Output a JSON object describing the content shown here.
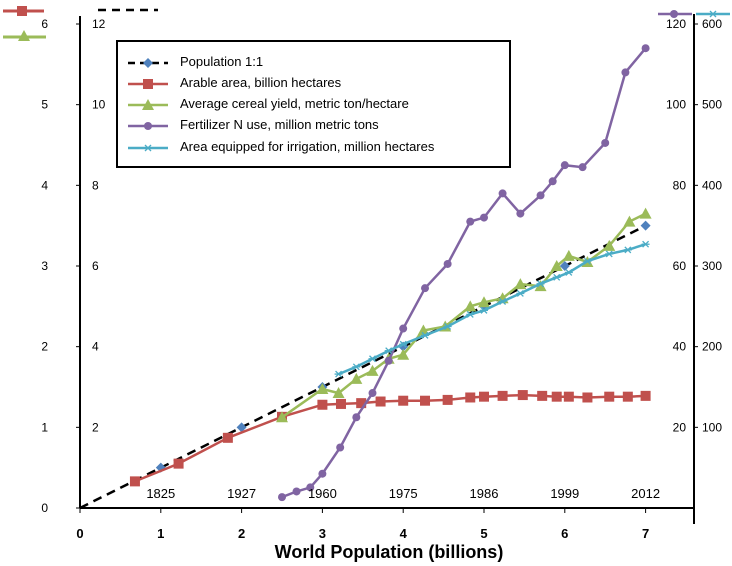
{
  "chart_data": {
    "type": "line",
    "xlabel": "World Population (billions)",
    "xlim": [
      0,
      7
    ],
    "x_ticks": [
      "0",
      "1",
      "2",
      "3",
      "4",
      "5",
      "6",
      "7"
    ],
    "year_labels": [
      {
        "x": 1.0,
        "label": "1825"
      },
      {
        "x": 2.0,
        "label": "1927"
      },
      {
        "x": 3.0,
        "label": "1960"
      },
      {
        "x": 4.0,
        "label": "1975"
      },
      {
        "x": 5.0,
        "label": "1986"
      },
      {
        "x": 6.0,
        "label": "1999"
      },
      {
        "x": 7.0,
        "label": "2012"
      }
    ],
    "axes": {
      "arable": {
        "ylim": [
          0,
          6
        ],
        "ticks": [
          "0",
          "1",
          "2",
          "3",
          "4",
          "5",
          "6"
        ],
        "color": "#c0504d"
      },
      "yield": {
        "ylim": [
          0,
          12
        ],
        "ticks": [
          "2",
          "4",
          "6",
          "8",
          "10",
          "12"
        ],
        "color": "#9bbb59"
      },
      "fertilizer": {
        "ylim": [
          0,
          120
        ],
        "ticks": [
          "20",
          "40",
          "60",
          "80",
          "100",
          "120"
        ],
        "color": "#8064a2"
      },
      "irrigation": {
        "ylim": [
          0,
          600
        ],
        "ticks": [
          "100",
          "200",
          "300",
          "400",
          "500",
          "600"
        ],
        "color": "#4bacc6"
      }
    },
    "series": [
      {
        "key": "population",
        "name": "Population 1:1",
        "axis": "arable",
        "color": "#000000",
        "marker_color": "#4f81bd",
        "marker": "diamond",
        "dashed": true,
        "x": [
          0,
          1,
          2,
          3,
          4,
          5,
          6,
          7
        ],
        "y": [
          0,
          0.5,
          1,
          1.5,
          2,
          2.5,
          3,
          3.5
        ]
      },
      {
        "key": "arable",
        "name": "Arable area, billion hectares",
        "axis": "arable",
        "color": "#c0504d",
        "marker": "square",
        "x": [
          0.68,
          1.22,
          1.83,
          2.5,
          3.0,
          3.23,
          3.48,
          3.72,
          4.0,
          4.27,
          4.55,
          4.83,
          5.0,
          5.23,
          5.48,
          5.72,
          5.9,
          6.05,
          6.28,
          6.55,
          6.78,
          7.0
        ],
        "y": [
          0.33,
          0.55,
          0.87,
          1.13,
          1.28,
          1.29,
          1.3,
          1.32,
          1.33,
          1.33,
          1.34,
          1.37,
          1.38,
          1.39,
          1.4,
          1.39,
          1.38,
          1.38,
          1.37,
          1.38,
          1.38,
          1.39
        ]
      },
      {
        "key": "yield",
        "name": "Average cereal yield, metric ton/hectare",
        "axis": "yield",
        "color": "#9bbb59",
        "marker": "triangle",
        "x": [
          2.5,
          3.0,
          3.2,
          3.42,
          3.62,
          3.82,
          4.0,
          4.25,
          4.52,
          4.83,
          5.0,
          5.23,
          5.45,
          5.7,
          5.9,
          6.05,
          6.28,
          6.55,
          6.8,
          7.0
        ],
        "y": [
          2.25,
          2.95,
          2.85,
          3.2,
          3.4,
          3.7,
          3.8,
          4.4,
          4.5,
          5.0,
          5.1,
          5.2,
          5.55,
          5.5,
          6.0,
          6.25,
          6.1,
          6.5,
          7.1,
          7.3
        ]
      },
      {
        "key": "fertilizer",
        "name": "Fertilizer N use, million metric tons",
        "axis": "fertilizer",
        "color": "#8064a2",
        "marker": "circle",
        "x": [
          2.5,
          2.68,
          2.85,
          3.0,
          3.22,
          3.42,
          3.62,
          3.82,
          4.0,
          4.27,
          4.55,
          4.83,
          5.0,
          5.23,
          5.45,
          5.7,
          5.85,
          6.0,
          6.22,
          6.5,
          6.75,
          7.0
        ],
        "y": [
          2.7,
          4.1,
          5.1,
          8.5,
          15.0,
          22.5,
          28.5,
          36.5,
          44.5,
          54.5,
          60.5,
          71.0,
          72.0,
          78.0,
          73.0,
          77.5,
          81.0,
          85.0,
          84.5,
          90.5,
          108.0,
          114.0
        ]
      },
      {
        "key": "irrigation",
        "name": "Area equipped for irrigation, million hectares",
        "axis": "irrigation",
        "color": "#4bacc6",
        "marker": "star",
        "x": [
          3.2,
          3.42,
          3.62,
          3.82,
          4.0,
          4.27,
          4.55,
          4.83,
          5.0,
          5.23,
          5.45,
          5.7,
          5.9,
          6.05,
          6.28,
          6.55,
          6.78,
          7.0
        ],
        "y": [
          166,
          175,
          185,
          195,
          203,
          214,
          225,
          240,
          245,
          256,
          266,
          278,
          286,
          292,
          306,
          315,
          320,
          327
        ]
      }
    ],
    "legend": {
      "position": "top-left",
      "order": [
        "population",
        "arable",
        "yield",
        "fertilizer",
        "irrigation"
      ]
    }
  }
}
